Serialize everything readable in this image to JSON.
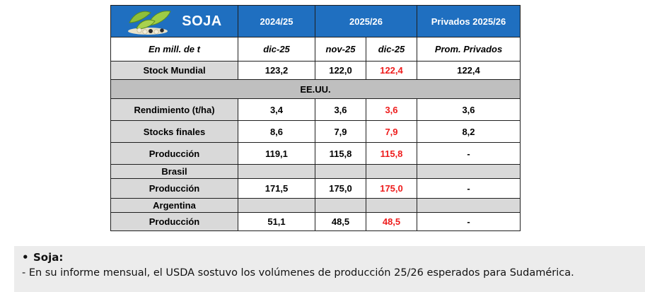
{
  "table": {
    "brand_title": "SOJA",
    "header": [
      "2024/25",
      "2025/26",
      "Privados 2025/26"
    ],
    "units_label": "En mill. de t",
    "subheader": [
      "dic-25",
      "nov-25",
      "dic-25",
      "Prom. Privados"
    ],
    "stock_mundial": {
      "label": "Stock Mundial",
      "values": [
        "123,2",
        "122,0",
        "122,4",
        "122,4"
      ]
    },
    "usa": {
      "band": "EE.UU.",
      "rows": [
        {
          "label": "Rendimiento (t/ha)",
          "values": [
            "3,4",
            "3,6",
            "3,6",
            "3,6"
          ]
        },
        {
          "label": "Stocks finales",
          "values": [
            "8,6",
            "7,9",
            "7,9",
            "8,2"
          ]
        },
        {
          "label": "Producción",
          "values": [
            "119,1",
            "115,8",
            "115,8",
            "-"
          ]
        }
      ]
    },
    "brasil": {
      "label": "Brasil",
      "row": {
        "label": "Producción",
        "values": [
          "171,5",
          "175,0",
          "175,0",
          "-"
        ]
      }
    },
    "argentina": {
      "label": "Argentina",
      "row": {
        "label": "Producción",
        "values": [
          "51,1",
          "48,5",
          "48,5",
          "-"
        ]
      }
    },
    "colors": {
      "header_bg": "#1f6fc0",
      "label_bg": "#d9d9d9",
      "band_bg": "#bfbfbf",
      "highlight_text": "#ee1c1c"
    },
    "icons": [
      "soybean-pods-icon"
    ]
  },
  "notes": {
    "bullet": "Soja:",
    "text": "- En su informe mensual, el USDA sostuvo los volúmenes de producción 25/26 esperados para Sudamérica."
  }
}
